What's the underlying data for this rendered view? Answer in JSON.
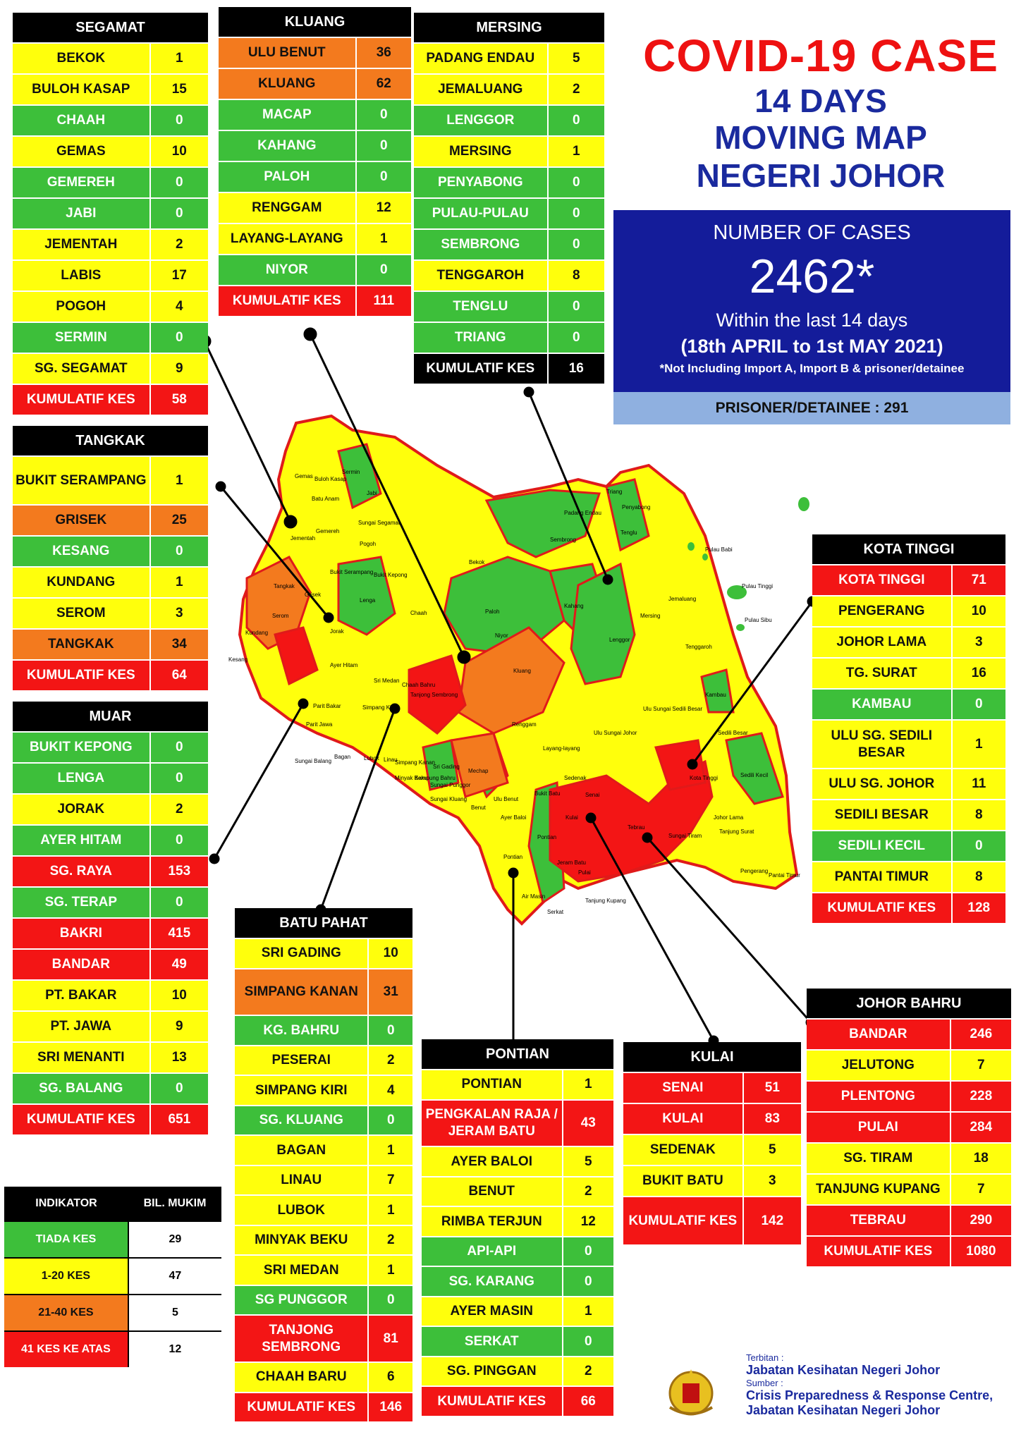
{
  "title": {
    "line1": "COVID-19 CASE",
    "line2": "14 DAYS",
    "line3": "MOVING MAP",
    "line4": "NEGERI JOHOR"
  },
  "summary": {
    "label": "NUMBER OF CASES",
    "total": "2462*",
    "within": "Within the last 14 days",
    "period": "(18th APRIL to 1st MAY 2021)",
    "note": "*Not Including Import A, Import B & prisoner/detainee",
    "prisoner": "PRISONER/DETAINEE : 291"
  },
  "colors": {
    "green": "#3dbf3a",
    "yellow": "#ffff0c",
    "orange": "#f37a1e",
    "red": "#f31515"
  },
  "districts": [
    {
      "name": "SEGAMAT",
      "rows": [
        [
          "BEKOK",
          "1",
          "yellow"
        ],
        [
          "BULOH KASAP",
          "15",
          "yellow"
        ],
        [
          "CHAAH",
          "0",
          "green"
        ],
        [
          "GEMAS",
          "10",
          "yellow"
        ],
        [
          "GEMEREH",
          "0",
          "green"
        ],
        [
          "JABI",
          "0",
          "green"
        ],
        [
          "JEMENTAH",
          "2",
          "yellow"
        ],
        [
          "LABIS",
          "17",
          "yellow"
        ],
        [
          "POGOH",
          "4",
          "yellow"
        ],
        [
          "SERMIN",
          "0",
          "green"
        ],
        [
          "SG. SEGAMAT",
          "9",
          "yellow"
        ],
        [
          "KUMULATIF KES",
          "58",
          "red"
        ]
      ]
    },
    {
      "name": "KLUANG",
      "rows": [
        [
          "ULU BENUT",
          "36",
          "orange"
        ],
        [
          "KLUANG",
          "62",
          "orange"
        ],
        [
          "MACAP",
          "0",
          "green"
        ],
        [
          "KAHANG",
          "0",
          "green"
        ],
        [
          "PALOH",
          "0",
          "green"
        ],
        [
          "RENGGAM",
          "12",
          "yellow"
        ],
        [
          "LAYANG-LAYANG",
          "1",
          "yellow"
        ],
        [
          "NIYOR",
          "0",
          "green"
        ],
        [
          "KUMULATIF KES",
          "111",
          "red"
        ]
      ]
    },
    {
      "name": "MERSING",
      "rows": [
        [
          "PADANG ENDAU",
          "5",
          "yellow"
        ],
        [
          "JEMALUANG",
          "2",
          "yellow"
        ],
        [
          "LENGGOR",
          "0",
          "green"
        ],
        [
          "MERSING",
          "1",
          "yellow"
        ],
        [
          "PENYABONG",
          "0",
          "green"
        ],
        [
          "PULAU-PULAU",
          "0",
          "green"
        ],
        [
          "SEMBRONG",
          "0",
          "green"
        ],
        [
          "TENGGAROH",
          "8",
          "yellow"
        ],
        [
          "TENGLU",
          "0",
          "green"
        ],
        [
          "TRIANG",
          "0",
          "green"
        ],
        [
          "KUMULATIF KES",
          "16",
          "black"
        ]
      ]
    },
    {
      "name": "TANGKAK",
      "rows": [
        [
          "BUKIT SERAMPANG",
          "1",
          "yellow"
        ],
        [
          "GRISEK",
          "25",
          "orange"
        ],
        [
          "KESANG",
          "0",
          "green"
        ],
        [
          "KUNDANG",
          "1",
          "yellow"
        ],
        [
          "SEROM",
          "3",
          "yellow"
        ],
        [
          "TANGKAK",
          "34",
          "orange"
        ],
        [
          "KUMULATIF KES",
          "64",
          "red"
        ]
      ]
    },
    {
      "name": "MUAR",
      "rows": [
        [
          "BUKIT KEPONG",
          "0",
          "green"
        ],
        [
          "LENGA",
          "0",
          "green"
        ],
        [
          "JORAK",
          "2",
          "yellow"
        ],
        [
          "AYER HITAM",
          "0",
          "green"
        ],
        [
          "SG. RAYA",
          "153",
          "red"
        ],
        [
          "SG. TERAP",
          "0",
          "green"
        ],
        [
          "BAKRI",
          "415",
          "red"
        ],
        [
          "BANDAR",
          "49",
          "red"
        ],
        [
          "PT. BAKAR",
          "10",
          "yellow"
        ],
        [
          "PT. JAWA",
          "9",
          "yellow"
        ],
        [
          "SRI MENANTI",
          "13",
          "yellow"
        ],
        [
          "SG. BALANG",
          "0",
          "green"
        ],
        [
          "KUMULATIF KES",
          "651",
          "red"
        ]
      ]
    },
    {
      "name": "BATU PAHAT",
      "rows": [
        [
          "SRI GADING",
          "10",
          "yellow"
        ],
        [
          "SIMPANG KANAN",
          "31",
          "orange"
        ],
        [
          "KG. BAHRU",
          "0",
          "green"
        ],
        [
          "PESERAI",
          "2",
          "yellow"
        ],
        [
          "SIMPANG KIRI",
          "4",
          "yellow"
        ],
        [
          "SG. KLUANG",
          "0",
          "green"
        ],
        [
          "BAGAN",
          "1",
          "yellow"
        ],
        [
          "LINAU",
          "7",
          "yellow"
        ],
        [
          "LUBOK",
          "1",
          "yellow"
        ],
        [
          "MINYAK BEKU",
          "2",
          "yellow"
        ],
        [
          "SRI MEDAN",
          "1",
          "yellow"
        ],
        [
          "SG PUNGGOR",
          "0",
          "green"
        ],
        [
          "TANJONG SEMBRONG",
          "81",
          "red"
        ],
        [
          "CHAAH BARU",
          "6",
          "yellow"
        ],
        [
          "KUMULATIF KES",
          "146",
          "red"
        ]
      ]
    },
    {
      "name": "PONTIAN",
      "rows": [
        [
          "PONTIAN",
          "1",
          "yellow"
        ],
        [
          "PENGKALAN RAJA / JERAM BATU",
          "43",
          "red"
        ],
        [
          "AYER BALOI",
          "5",
          "yellow"
        ],
        [
          "BENUT",
          "2",
          "yellow"
        ],
        [
          "RIMBA TERJUN",
          "12",
          "yellow"
        ],
        [
          "API-API",
          "0",
          "green"
        ],
        [
          "SG. KARANG",
          "0",
          "green"
        ],
        [
          "AYER MASIN",
          "1",
          "yellow"
        ],
        [
          "SERKAT",
          "0",
          "green"
        ],
        [
          "SG. PINGGAN",
          "2",
          "yellow"
        ],
        [
          "KUMULATIF KES",
          "66",
          "red"
        ]
      ]
    },
    {
      "name": "KULAI",
      "rows": [
        [
          "SENAI",
          "51",
          "red"
        ],
        [
          "KULAI",
          "83",
          "red"
        ],
        [
          "SEDENAK",
          "5",
          "yellow"
        ],
        [
          "BUKIT BATU",
          "3",
          "yellow"
        ],
        [
          "KUMULATIF KES",
          "142",
          "red"
        ]
      ]
    },
    {
      "name": "KOTA TINGGI",
      "rows": [
        [
          "KOTA TINGGI",
          "71",
          "red"
        ],
        [
          "PENGERANG",
          "10",
          "yellow"
        ],
        [
          "JOHOR LAMA",
          "3",
          "yellow"
        ],
        [
          "TG. SURAT",
          "16",
          "yellow"
        ],
        [
          "KAMBAU",
          "0",
          "green"
        ],
        [
          "ULU SG. SEDILI BESAR",
          "1",
          "yellow"
        ],
        [
          "ULU SG. JOHOR",
          "11",
          "yellow"
        ],
        [
          "SEDILI BESAR",
          "8",
          "yellow"
        ],
        [
          "SEDILI KECIL",
          "0",
          "green"
        ],
        [
          "PANTAI TIMUR",
          "8",
          "yellow"
        ],
        [
          "KUMULATIF KES",
          "128",
          "red"
        ]
      ]
    },
    {
      "name": "JOHOR BAHRU",
      "rows": [
        [
          "BANDAR",
          "246",
          "red"
        ],
        [
          "JELUTONG",
          "7",
          "yellow"
        ],
        [
          "PLENTONG",
          "228",
          "red"
        ],
        [
          "PULAI",
          "284",
          "red"
        ],
        [
          "SG. TIRAM",
          "18",
          "yellow"
        ],
        [
          "TANJUNG KUPANG",
          "7",
          "yellow"
        ],
        [
          "TEBRAU",
          "290",
          "red"
        ],
        [
          "KUMULATIF KES",
          "1080",
          "red"
        ]
      ]
    }
  ],
  "legend": {
    "h1": "INDIKATOR",
    "h2": "BIL. MUKIM",
    "rows": [
      [
        "TIADA KES",
        "29",
        "green"
      ],
      [
        "1-20 KES",
        "47",
        "yellow"
      ],
      [
        "21-40 KES",
        "5",
        "orange"
      ],
      [
        "41 KES KE ATAS",
        "12",
        "red"
      ]
    ]
  },
  "footer": {
    "terbitan": "Terbitan :",
    "publisher": "Jabatan Kesihatan Negeri Johor",
    "sumber": "Sumber :",
    "source1": "Crisis Preparedness & Response Centre,",
    "source2": "Jabatan Kesihatan Negeri Johor"
  },
  "map_labels": [
    "Gemas",
    "Buloh Kasap",
    "Sermin",
    "Jabi",
    "Batu Anam",
    "Sungai Segamat",
    "Jementah",
    "Gemereh",
    "Pogoh",
    "Bekok",
    "Bukit Serampang",
    "Tangkak",
    "Grisek",
    "Bukit Kepong",
    "Lenga",
    "Serom",
    "Kundang",
    "Jorak",
    "Chaah",
    "Paloh",
    "Niyor",
    "Kahang",
    "Sembrong",
    "Padang Endau",
    "Penyabong",
    "Triang",
    "Tenglu",
    "Pulau Babi",
    "Pulau Tinggi",
    "Pulau Sibu",
    "Jemaluang",
    "Mersing",
    "Lenggor",
    "Tenggaroh",
    "Kesang",
    "Ayer Hitam",
    "Sri Medan",
    "Chaah Bahru",
    "Tanjong Sembrong",
    "Kluang",
    "Renggam",
    "Mechap",
    "Sri Gading",
    "Ulu Sungai Sedili Besar",
    "Kambau",
    "Sedili Besar",
    "Sedili Kecil",
    "Ulu Sungai Johor",
    "Kota Tinggi",
    "Layang-layang",
    "Sedenak",
    "Ulu Benut",
    "Bukit Batu",
    "Benut",
    "Senai",
    "Kulai",
    "Tebrau",
    "Johor Lama",
    "Tanjung Surat",
    "Pengerang",
    "Pantai Timur",
    "Pontian",
    "Jeram Batu",
    "Pulai",
    "Tanjung Kupang",
    "Sungai Tiram",
    "Parit Bakar",
    "Parit Jawa",
    "Sungai Balang",
    "Bagan",
    "Lubok",
    "Linau",
    "Minyak Beku",
    "Kampung Bahru",
    "Simpang Kanan",
    "Sungai Punggor",
    "Sungai Kluang",
    "Ayer Baloi",
    "Pontian",
    "Air Masin",
    "Serkat",
    "Simpang Kiri"
  ]
}
